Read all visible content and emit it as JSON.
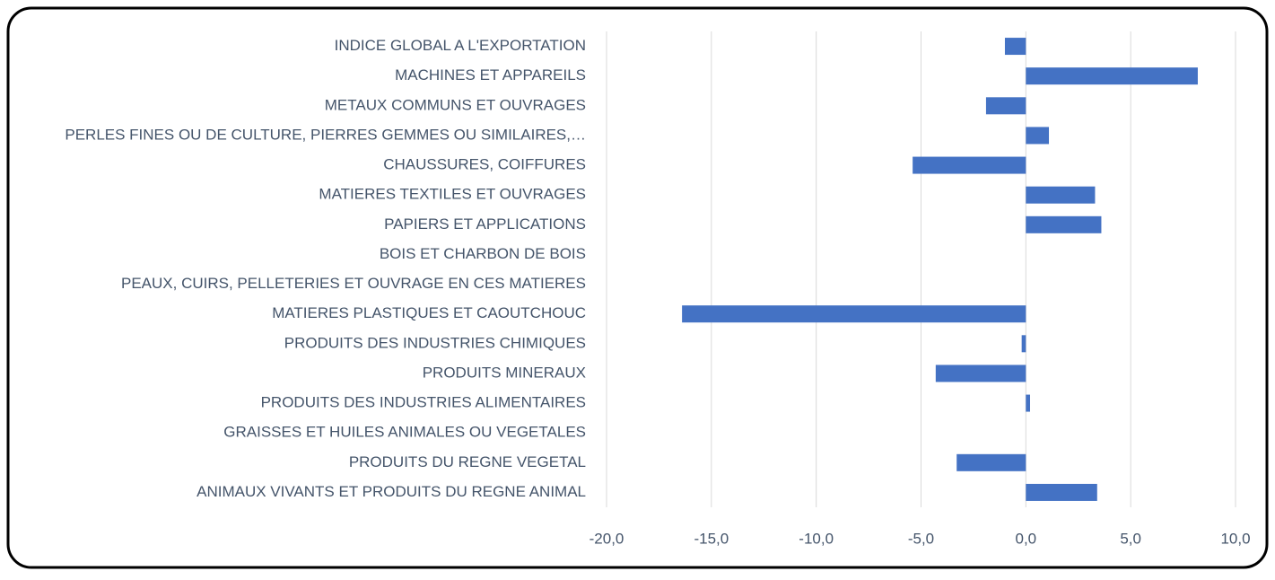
{
  "chart_data": {
    "type": "bar",
    "orientation": "horizontal",
    "categories": [
      "INDICE GLOBAL A L'EXPORTATION",
      "MACHINES ET APPAREILS",
      "METAUX COMMUNS ET OUVRAGES",
      "PERLES FINES OU DE CULTURE, PIERRES GEMMES OU SIMILAIRES,…",
      "CHAUSSURES, COIFFURES",
      "MATIERES TEXTILES ET OUVRAGES",
      "PAPIERS ET APPLICATIONS",
      "BOIS ET CHARBON DE BOIS",
      "PEAUX, CUIRS, PELLETERIES ET OUVRAGE EN CES MATIERES",
      "MATIERES PLASTIQUES ET CAOUTCHOUC",
      "PRODUITS DES INDUSTRIES CHIMIQUES",
      "PRODUITS MINERAUX",
      "PRODUITS DES INDUSTRIES ALIMENTAIRES",
      "GRAISSES ET HUILES ANIMALES OU VEGETALES",
      "PRODUITS DU REGNE VEGETAL",
      "ANIMAUX VIVANTS ET PRODUITS DU REGNE ANIMAL"
    ],
    "values": [
      -1.0,
      8.2,
      -1.9,
      1.1,
      -5.4,
      3.3,
      3.6,
      0,
      0,
      -16.4,
      -0.2,
      -4.3,
      0.2,
      0,
      -3.3,
      3.4
    ],
    "color": "#4472c4",
    "xlim": [
      -20,
      10
    ],
    "xticks": [
      {
        "value": -20,
        "label": "-20,0"
      },
      {
        "value": -15,
        "label": "-15,0"
      },
      {
        "value": -10,
        "label": "-10,0"
      },
      {
        "value": -5,
        "label": "-5,0"
      },
      {
        "value": 0,
        "label": "0,0"
      },
      {
        "value": 5,
        "label": "5,0"
      },
      {
        "value": 10,
        "label": "10,0"
      }
    ],
    "grid": true
  }
}
